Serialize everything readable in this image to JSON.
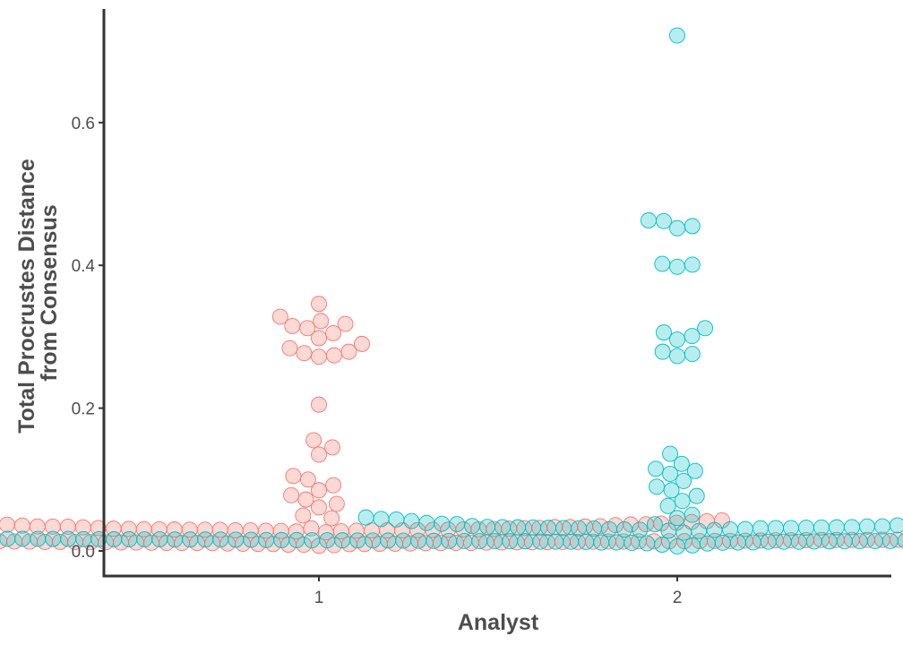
{
  "chart_data": {
    "type": "scatter",
    "subtype": "beeswarm",
    "title": "",
    "xlabel": "Analyst",
    "ylabel_lines": [
      "Total Procrustes Distance",
      "from Consensus"
    ],
    "categories": [
      "1",
      "2"
    ],
    "y_ticks": [
      "0.0",
      "0.2",
      "0.4",
      "0.6"
    ],
    "ylim": [
      -0.033,
      0.76
    ],
    "grid": false,
    "legend": "none",
    "colors": {
      "1": "#F8766D",
      "2": "#00BFC4"
    },
    "series": [
      {
        "category": "1",
        "values": [
          0.346,
          0.328,
          0.322,
          0.318,
          0.315,
          0.312,
          0.305,
          0.298,
          0.29,
          0.284,
          0.279,
          0.277,
          0.274,
          0.272,
          0.205,
          0.155,
          0.145,
          0.135,
          0.105,
          0.1,
          0.092,
          0.085,
          0.078,
          0.072,
          0.066,
          0.061
        ],
        "bulk": {
          "count": 420,
          "min": 0.004,
          "max": 0.058,
          "mode": 0.022
        }
      },
      {
        "category": "2",
        "values": [
          0.722,
          0.463,
          0.462,
          0.455,
          0.452,
          0.402,
          0.401,
          0.398,
          0.312,
          0.306,
          0.301,
          0.296,
          0.279,
          0.276,
          0.273,
          0.136,
          0.122,
          0.115,
          0.112,
          0.108,
          0.098,
          0.09,
          0.085,
          0.077,
          0.07,
          0.063
        ],
        "bulk": {
          "count": 420,
          "min": 0.004,
          "max": 0.058,
          "mode": 0.022
        }
      }
    ]
  }
}
